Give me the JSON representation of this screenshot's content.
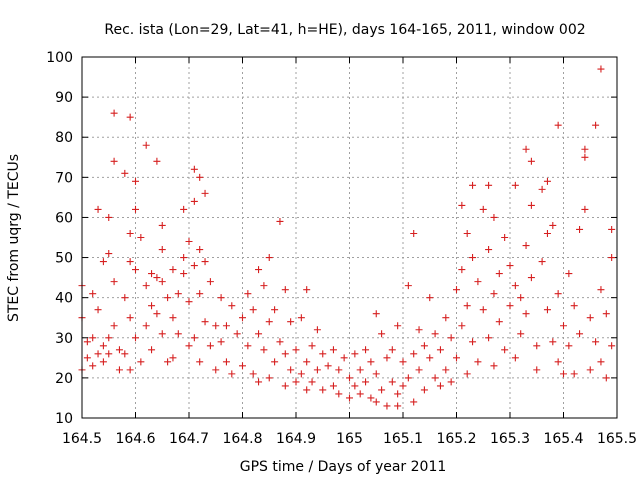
{
  "chart_data": {
    "type": "scatter",
    "title": "Rec. ista (Lon=29, Lat=41, h=HE), days 164-165, 2011, window 002",
    "xlabel": "GPS time / Days of year 2011",
    "ylabel": "STEC from uqrg / TECUs",
    "xlim": [
      164.5,
      165.5
    ],
    "ylim": [
      10,
      100
    ],
    "x_ticks": [
      "164.5",
      "164.6",
      "164.7",
      "164.8",
      "164.9",
      "165",
      "165.1",
      "165.2",
      "165.3",
      "165.4",
      "165.5"
    ],
    "y_ticks": [
      "10",
      "20",
      "30",
      "40",
      "50",
      "60",
      "70",
      "80",
      "90",
      "100"
    ],
    "grid": true,
    "marker": "+",
    "colors": {
      "points": "#d62020",
      "grid": "#a0a0a0",
      "axes": "#000000"
    },
    "series": [
      {
        "points": [
          [
            164.5,
            43
          ],
          [
            164.5,
            35
          ],
          [
            164.5,
            22
          ],
          [
            164.51,
            29
          ],
          [
            164.51,
            25
          ],
          [
            164.52,
            41
          ],
          [
            164.52,
            30
          ],
          [
            164.52,
            23
          ],
          [
            164.53,
            26
          ],
          [
            164.53,
            37
          ],
          [
            164.53,
            62
          ],
          [
            164.54,
            49
          ],
          [
            164.54,
            28
          ],
          [
            164.54,
            24
          ],
          [
            164.55,
            60
          ],
          [
            164.55,
            51
          ],
          [
            164.55,
            30
          ],
          [
            164.55,
            26
          ],
          [
            164.56,
            86
          ],
          [
            164.56,
            74
          ],
          [
            164.56,
            44
          ],
          [
            164.56,
            33
          ],
          [
            164.57,
            27
          ],
          [
            164.57,
            22
          ],
          [
            164.58,
            71
          ],
          [
            164.58,
            40
          ],
          [
            164.58,
            26
          ],
          [
            164.59,
            85
          ],
          [
            164.59,
            56
          ],
          [
            164.59,
            49
          ],
          [
            164.59,
            35
          ],
          [
            164.59,
            22
          ],
          [
            164.6,
            69
          ],
          [
            164.6,
            62
          ],
          [
            164.6,
            47
          ],
          [
            164.6,
            30
          ],
          [
            164.61,
            55
          ],
          [
            164.61,
            24
          ],
          [
            164.62,
            78
          ],
          [
            164.62,
            43
          ],
          [
            164.62,
            33
          ],
          [
            164.63,
            46
          ],
          [
            164.63,
            38
          ],
          [
            164.63,
            27
          ],
          [
            164.64,
            74
          ],
          [
            164.64,
            45
          ],
          [
            164.64,
            36
          ],
          [
            164.65,
            58
          ],
          [
            164.65,
            52
          ],
          [
            164.65,
            44
          ],
          [
            164.65,
            31
          ],
          [
            164.66,
            40
          ],
          [
            164.66,
            24
          ],
          [
            164.67,
            47
          ],
          [
            164.67,
            35
          ],
          [
            164.67,
            25
          ],
          [
            164.68,
            41
          ],
          [
            164.68,
            31
          ],
          [
            164.69,
            62
          ],
          [
            164.69,
            50
          ],
          [
            164.69,
            46
          ],
          [
            164.7,
            54
          ],
          [
            164.7,
            39
          ],
          [
            164.7,
            28
          ],
          [
            164.71,
            72
          ],
          [
            164.71,
            64
          ],
          [
            164.71,
            48
          ],
          [
            164.71,
            30
          ],
          [
            164.72,
            70
          ],
          [
            164.72,
            52
          ],
          [
            164.72,
            41
          ],
          [
            164.72,
            24
          ],
          [
            164.73,
            66
          ],
          [
            164.73,
            49
          ],
          [
            164.73,
            34
          ],
          [
            164.74,
            44
          ],
          [
            164.74,
            28
          ],
          [
            164.75,
            33
          ],
          [
            164.75,
            22
          ],
          [
            164.76,
            40
          ],
          [
            164.76,
            29
          ],
          [
            164.77,
            33
          ],
          [
            164.77,
            24
          ],
          [
            164.78,
            38
          ],
          [
            164.78,
            21
          ],
          [
            164.79,
            31
          ],
          [
            164.8,
            35
          ],
          [
            164.8,
            23
          ],
          [
            164.81,
            41
          ],
          [
            164.81,
            28
          ],
          [
            164.82,
            37
          ],
          [
            164.82,
            21
          ],
          [
            164.83,
            47
          ],
          [
            164.83,
            31
          ],
          [
            164.83,
            19
          ],
          [
            164.84,
            43
          ],
          [
            164.84,
            27
          ],
          [
            164.85,
            50
          ],
          [
            164.85,
            34
          ],
          [
            164.85,
            20
          ],
          [
            164.86,
            37
          ],
          [
            164.86,
            24
          ],
          [
            164.87,
            59
          ],
          [
            164.87,
            29
          ],
          [
            164.88,
            42
          ],
          [
            164.88,
            26
          ],
          [
            164.88,
            18
          ],
          [
            164.89,
            34
          ],
          [
            164.89,
            22
          ],
          [
            164.9,
            27
          ],
          [
            164.9,
            19
          ],
          [
            164.91,
            35
          ],
          [
            164.91,
            21
          ],
          [
            164.92,
            42
          ],
          [
            164.92,
            24
          ],
          [
            164.92,
            17
          ],
          [
            164.93,
            28
          ],
          [
            164.93,
            19
          ],
          [
            164.94,
            32
          ],
          [
            164.94,
            22
          ],
          [
            164.95,
            26
          ],
          [
            164.95,
            17
          ],
          [
            164.96,
            23
          ],
          [
            164.97,
            27
          ],
          [
            164.97,
            18
          ],
          [
            164.98,
            22
          ],
          [
            164.98,
            16
          ],
          [
            164.99,
            25
          ],
          [
            165.0,
            20
          ],
          [
            165.0,
            15
          ],
          [
            165.01,
            26
          ],
          [
            165.01,
            18
          ],
          [
            165.02,
            22
          ],
          [
            165.02,
            16
          ],
          [
            165.03,
            27
          ],
          [
            165.03,
            19
          ],
          [
            165.04,
            24
          ],
          [
            165.04,
            15
          ],
          [
            165.05,
            36
          ],
          [
            165.05,
            21
          ],
          [
            165.05,
            14
          ],
          [
            165.06,
            31
          ],
          [
            165.06,
            17
          ],
          [
            165.07,
            25
          ],
          [
            165.07,
            13
          ],
          [
            165.08,
            27
          ],
          [
            165.08,
            19
          ],
          [
            165.09,
            33
          ],
          [
            165.09,
            16
          ],
          [
            165.09,
            13
          ],
          [
            165.1,
            24
          ],
          [
            165.1,
            18
          ],
          [
            165.11,
            43
          ],
          [
            165.11,
            20
          ],
          [
            165.12,
            56
          ],
          [
            165.12,
            26
          ],
          [
            165.12,
            14
          ],
          [
            165.13,
            32
          ],
          [
            165.13,
            22
          ],
          [
            165.14,
            28
          ],
          [
            165.14,
            17
          ],
          [
            165.15,
            40
          ],
          [
            165.15,
            25
          ],
          [
            165.16,
            31
          ],
          [
            165.16,
            20
          ],
          [
            165.17,
            27
          ],
          [
            165.17,
            18
          ],
          [
            165.18,
            35
          ],
          [
            165.18,
            22
          ],
          [
            165.19,
            30
          ],
          [
            165.19,
            19
          ],
          [
            165.2,
            42
          ],
          [
            165.2,
            25
          ],
          [
            165.21,
            63
          ],
          [
            165.21,
            47
          ],
          [
            165.21,
            33
          ],
          [
            165.22,
            56
          ],
          [
            165.22,
            38
          ],
          [
            165.22,
            21
          ],
          [
            165.23,
            68
          ],
          [
            165.23,
            50
          ],
          [
            165.23,
            29
          ],
          [
            165.24,
            44
          ],
          [
            165.24,
            24
          ],
          [
            165.25,
            62
          ],
          [
            165.25,
            37
          ],
          [
            165.26,
            68
          ],
          [
            165.26,
            52
          ],
          [
            165.26,
            30
          ],
          [
            165.27,
            60
          ],
          [
            165.27,
            41
          ],
          [
            165.27,
            23
          ],
          [
            165.28,
            46
          ],
          [
            165.28,
            34
          ],
          [
            165.29,
            55
          ],
          [
            165.29,
            27
          ],
          [
            165.3,
            48
          ],
          [
            165.3,
            38
          ],
          [
            165.31,
            68
          ],
          [
            165.31,
            43
          ],
          [
            165.31,
            25
          ],
          [
            165.32,
            40
          ],
          [
            165.32,
            31
          ],
          [
            165.33,
            77
          ],
          [
            165.33,
            53
          ],
          [
            165.33,
            36
          ],
          [
            165.34,
            74
          ],
          [
            165.34,
            63
          ],
          [
            165.34,
            45
          ],
          [
            165.35,
            28
          ],
          [
            165.35,
            22
          ],
          [
            165.36,
            67
          ],
          [
            165.36,
            49
          ],
          [
            165.37,
            69
          ],
          [
            165.37,
            56
          ],
          [
            165.37,
            37
          ],
          [
            165.38,
            58
          ],
          [
            165.38,
            29
          ],
          [
            165.39,
            83
          ],
          [
            165.39,
            41
          ],
          [
            165.39,
            24
          ],
          [
            165.4,
            33
          ],
          [
            165.4,
            21
          ],
          [
            165.41,
            46
          ],
          [
            165.41,
            28
          ],
          [
            165.42,
            38
          ],
          [
            165.42,
            21
          ],
          [
            165.43,
            57
          ],
          [
            165.43,
            31
          ],
          [
            165.44,
            77
          ],
          [
            165.44,
            75
          ],
          [
            165.44,
            62
          ],
          [
            165.45,
            35
          ],
          [
            165.45,
            22
          ],
          [
            165.46,
            83
          ],
          [
            165.46,
            29
          ],
          [
            165.47,
            97
          ],
          [
            165.47,
            42
          ],
          [
            165.47,
            24
          ],
          [
            165.48,
            36
          ],
          [
            165.48,
            20
          ],
          [
            165.49,
            57
          ],
          [
            165.49,
            50
          ],
          [
            165.49,
            28
          ]
        ]
      }
    ]
  }
}
